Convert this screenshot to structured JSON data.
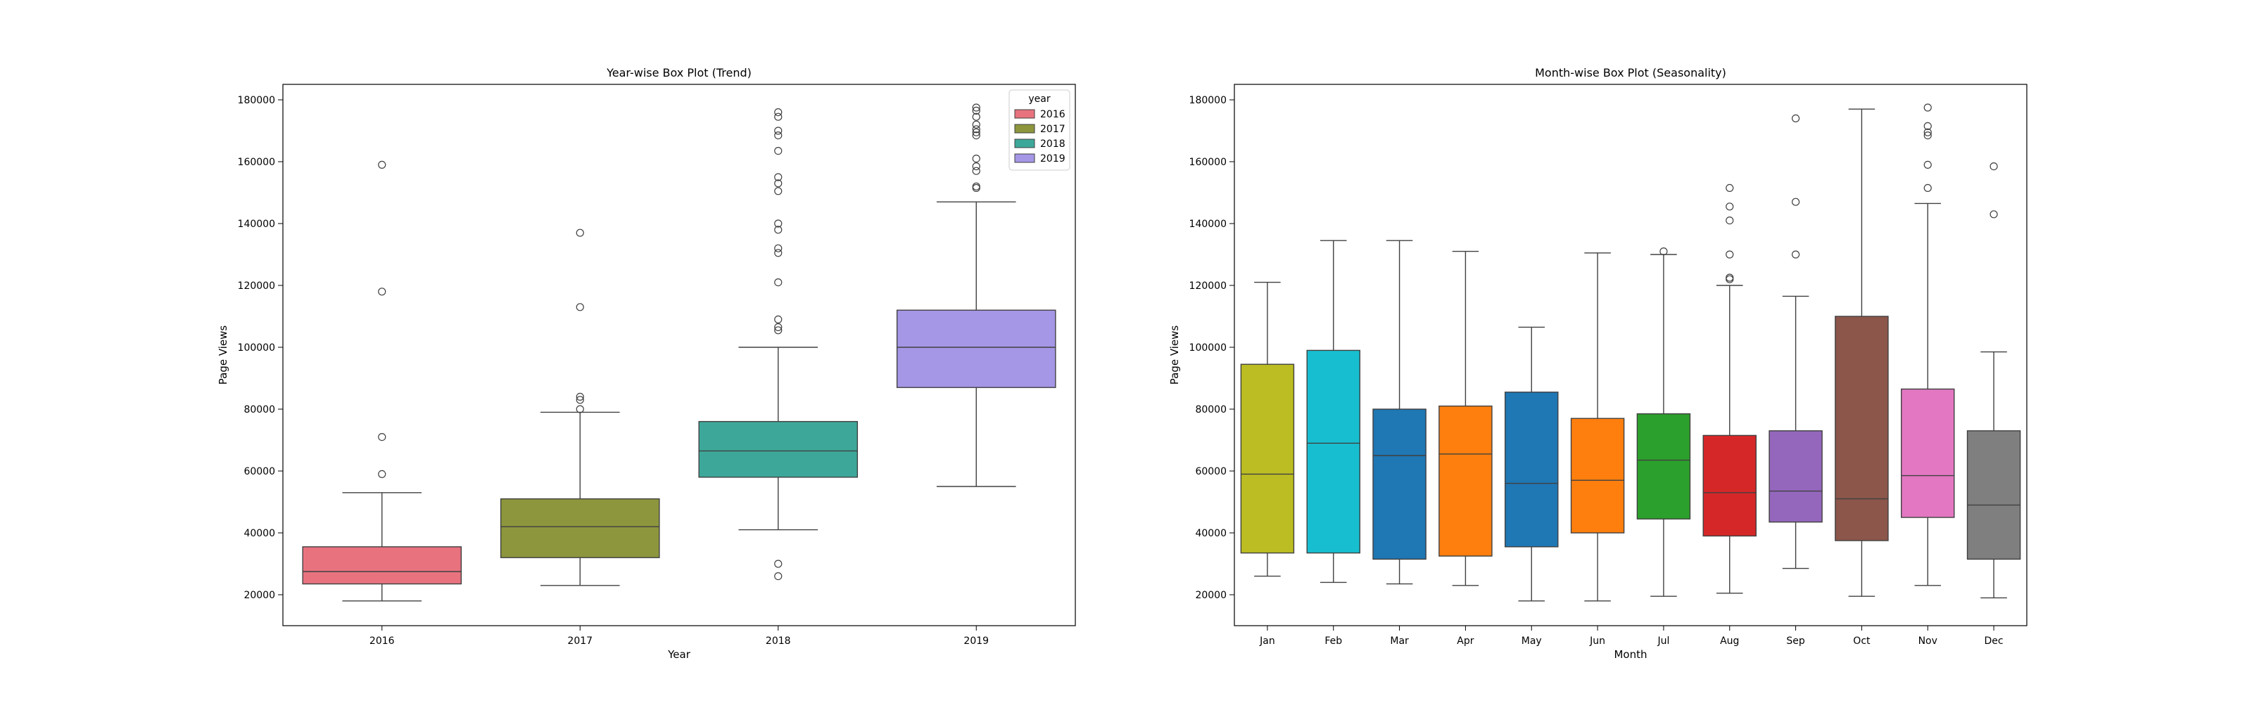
{
  "chart_data": [
    {
      "type": "box",
      "title": "Year-wise Box Plot (Trend)",
      "xlabel": "Year",
      "ylabel": "Page Views",
      "ylim": [
        10000,
        185000
      ],
      "yticks": [
        20000,
        40000,
        60000,
        80000,
        100000,
        120000,
        140000,
        160000,
        180000
      ],
      "categories": [
        "2016",
        "2017",
        "2018",
        "2019"
      ],
      "colors": [
        "#e8737f",
        "#8d963d",
        "#3da89a",
        "#a696e6"
      ],
      "legend": {
        "title": "year",
        "placement": "top-right",
        "entries": [
          "2016",
          "2017",
          "2018",
          "2019"
        ]
      },
      "boxes": [
        {
          "q1": 23500,
          "median": 27500,
          "q3": 35500,
          "whisker_low": 18000,
          "whisker_high": 53000,
          "outliers": [
            59000,
            71000,
            118000,
            159000
          ]
        },
        {
          "q1": 32000,
          "median": 42000,
          "q3": 51000,
          "whisker_low": 23000,
          "whisker_high": 79000,
          "outliers": [
            80000,
            83000,
            84000,
            113000,
            137000
          ]
        },
        {
          "q1": 58000,
          "median": 66500,
          "q3": 76000,
          "whisker_low": 41000,
          "whisker_high": 100000,
          "outliers": [
            26000,
            30000,
            105500,
            106500,
            109000,
            121000,
            130500,
            132000,
            138000,
            140000,
            150500,
            153000,
            155000,
            163500,
            168500,
            170000,
            174500,
            176000
          ]
        },
        {
          "q1": 87000,
          "median": 100000,
          "q3": 112000,
          "whisker_low": 55000,
          "whisker_high": 147000,
          "outliers": [
            151500,
            152000,
            157000,
            158500,
            161000,
            168500,
            169500,
            170500,
            172000,
            174500,
            176500,
            177500
          ]
        }
      ]
    },
    {
      "type": "box",
      "title": "Month-wise Box Plot (Seasonality)",
      "xlabel": "Month",
      "ylabel": "Page Views",
      "ylim": [
        10000,
        185000
      ],
      "yticks": [
        20000,
        40000,
        60000,
        80000,
        100000,
        120000,
        140000,
        160000,
        180000
      ],
      "categories": [
        "Jan",
        "Feb",
        "Mar",
        "Apr",
        "May",
        "Jun",
        "Jul",
        "Aug",
        "Sep",
        "Oct",
        "Nov",
        "Dec"
      ],
      "colors": [
        "#bcbd22",
        "#17becf",
        "#1f77b4",
        "#ff7f0e",
        "#1f77b4",
        "#ff7f0e",
        "#2ca02c",
        "#d62728",
        "#9467bd",
        "#8c564b",
        "#e377c2",
        "#7f7f7f"
      ],
      "boxes": [
        {
          "q1": 33500,
          "median": 59000,
          "q3": 94500,
          "whisker_low": 26000,
          "whisker_high": 121000,
          "outliers": []
        },
        {
          "q1": 33500,
          "median": 69000,
          "q3": 99000,
          "whisker_low": 24000,
          "whisker_high": 134500,
          "outliers": []
        },
        {
          "q1": 31500,
          "median": 65000,
          "q3": 80000,
          "whisker_low": 23500,
          "whisker_high": 134500,
          "outliers": []
        },
        {
          "q1": 32500,
          "median": 65500,
          "q3": 81000,
          "whisker_low": 23000,
          "whisker_high": 131000,
          "outliers": []
        },
        {
          "q1": 35500,
          "median": 56000,
          "q3": 85500,
          "whisker_low": 18000,
          "whisker_high": 106500,
          "outliers": []
        },
        {
          "q1": 40000,
          "median": 57000,
          "q3": 77000,
          "whisker_low": 18000,
          "whisker_high": 130500,
          "outliers": []
        },
        {
          "q1": 44500,
          "median": 63500,
          "q3": 78500,
          "whisker_low": 19500,
          "whisker_high": 130000,
          "outliers": [
            131000
          ]
        },
        {
          "q1": 39000,
          "median": 53000,
          "q3": 71500,
          "whisker_low": 20500,
          "whisker_high": 120000,
          "outliers": [
            122000,
            122500,
            130000,
            141000,
            145500,
            151500
          ]
        },
        {
          "q1": 43500,
          "median": 53500,
          "q3": 73000,
          "whisker_low": 28500,
          "whisker_high": 116500,
          "outliers": [
            130000,
            147000,
            174000
          ]
        },
        {
          "q1": 37500,
          "median": 51000,
          "q3": 110000,
          "whisker_low": 19500,
          "whisker_high": 177000,
          "outliers": []
        },
        {
          "q1": 45000,
          "median": 58500,
          "q3": 86500,
          "whisker_low": 23000,
          "whisker_high": 146500,
          "outliers": [
            151500,
            159000,
            168500,
            169500,
            171500,
            177500
          ]
        },
        {
          "q1": 31500,
          "median": 49000,
          "q3": 73000,
          "whisker_low": 19000,
          "whisker_high": 98500,
          "outliers": [
            143000,
            158500
          ]
        }
      ]
    }
  ]
}
